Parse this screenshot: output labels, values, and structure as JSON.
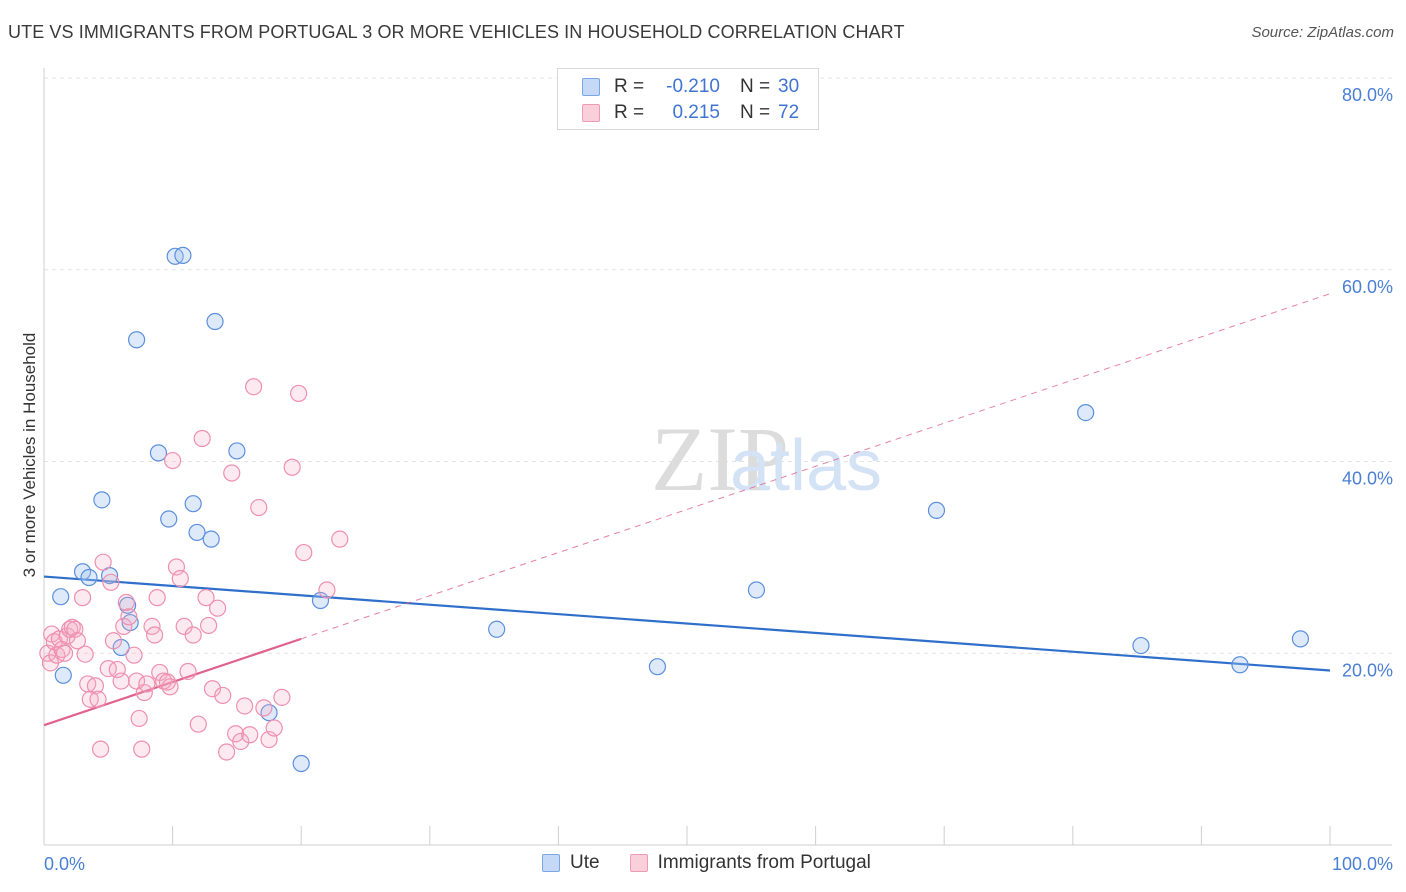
{
  "title": "UTE VS IMMIGRANTS FROM PORTUGAL 3 OR MORE VEHICLES IN HOUSEHOLD CORRELATION CHART",
  "source": "Source: ZipAtlas.com",
  "watermark": {
    "zip": "ZIP",
    "atlas": "atlas"
  },
  "legend": {
    "rows": [
      {
        "r_label": "R =",
        "r_value": "-0.210",
        "n_label": "N =",
        "n_value": "30"
      },
      {
        "r_label": "R =",
        "r_value": "0.215",
        "n_label": "N =",
        "n_value": "72"
      }
    ]
  },
  "colors": {
    "blue": "#5b8fdd",
    "blue_line": "#2f6fcc",
    "pink": "#ee8fae",
    "pink_line": "#e0628b",
    "tick": "#4a7fd4",
    "grid": "#e3e3e3"
  },
  "chart_data": {
    "type": "scatter",
    "title": "UTE VS IMMIGRANTS FROM PORTUGAL 3 OR MORE VEHICLES IN HOUSEHOLD CORRELATION CHART",
    "xlabel": "",
    "ylabel": "3 or more Vehicles in Household",
    "xlim": [
      0,
      100
    ],
    "ylim": [
      0,
      80
    ],
    "x_ticks": [
      "0.0%",
      "100.0%"
    ],
    "y_ticks": [
      {
        "value": 20,
        "label": "20.0%"
      },
      {
        "value": 40,
        "label": "40.0%"
      },
      {
        "value": 60,
        "label": "60.0%"
      },
      {
        "value": 80,
        "label": "80.0%"
      }
    ],
    "series": [
      {
        "name": "Ute",
        "color": "#5b8fdd",
        "points": [
          [
            1.3,
            25.9
          ],
          [
            1.5,
            17.7
          ],
          [
            3.0,
            28.5
          ],
          [
            3.5,
            27.9
          ],
          [
            4.5,
            36.0
          ],
          [
            5.1,
            28.1
          ],
          [
            6.0,
            20.6
          ],
          [
            6.5,
            25.0
          ],
          [
            6.7,
            23.2
          ],
          [
            7.2,
            52.7
          ],
          [
            8.9,
            40.9
          ],
          [
            9.7,
            34.0
          ],
          [
            10.2,
            61.4
          ],
          [
            10.8,
            61.5
          ],
          [
            11.6,
            35.6
          ],
          [
            11.9,
            32.6
          ],
          [
            13.0,
            31.9
          ],
          [
            13.3,
            54.6
          ],
          [
            15.0,
            41.1
          ],
          [
            17.5,
            13.8
          ],
          [
            20.0,
            8.5
          ],
          [
            21.5,
            25.5
          ],
          [
            35.2,
            22.5
          ],
          [
            47.7,
            18.6
          ],
          [
            55.4,
            26.6
          ],
          [
            69.4,
            34.9
          ],
          [
            81.0,
            45.1
          ],
          [
            85.3,
            20.8
          ],
          [
            93.0,
            18.8
          ],
          [
            97.7,
            21.5
          ]
        ]
      },
      {
        "name": "Immigrants from Portugal",
        "color": "#ee8fae",
        "points": [
          [
            0.3,
            20.0
          ],
          [
            0.5,
            19.0
          ],
          [
            0.6,
            22.0
          ],
          [
            0.8,
            21.2
          ],
          [
            1.0,
            19.8
          ],
          [
            1.2,
            21.5
          ],
          [
            1.4,
            20.4
          ],
          [
            1.6,
            20.0
          ],
          [
            1.8,
            21.8
          ],
          [
            2.0,
            22.5
          ],
          [
            2.2,
            22.7
          ],
          [
            2.4,
            22.5
          ],
          [
            2.6,
            21.3
          ],
          [
            3.0,
            25.8
          ],
          [
            3.2,
            19.9
          ],
          [
            3.4,
            16.8
          ],
          [
            3.6,
            15.2
          ],
          [
            4.0,
            16.6
          ],
          [
            4.2,
            15.2
          ],
          [
            4.4,
            10.0
          ],
          [
            4.6,
            29.5
          ],
          [
            5.0,
            18.4
          ],
          [
            5.2,
            27.4
          ],
          [
            5.4,
            21.3
          ],
          [
            5.7,
            18.3
          ],
          [
            6.0,
            17.1
          ],
          [
            6.2,
            22.8
          ],
          [
            6.4,
            25.3
          ],
          [
            6.6,
            23.8
          ],
          [
            7.0,
            19.8
          ],
          [
            7.2,
            17.1
          ],
          [
            7.4,
            13.2
          ],
          [
            7.6,
            10.0
          ],
          [
            7.8,
            15.9
          ],
          [
            8.0,
            16.8
          ],
          [
            8.4,
            22.8
          ],
          [
            8.6,
            21.9
          ],
          [
            8.8,
            25.8
          ],
          [
            9.0,
            18.0
          ],
          [
            9.3,
            17.1
          ],
          [
            9.6,
            17.0
          ],
          [
            9.8,
            16.5
          ],
          [
            10.0,
            40.1
          ],
          [
            10.3,
            29.0
          ],
          [
            10.6,
            27.8
          ],
          [
            10.9,
            22.8
          ],
          [
            11.2,
            18.1
          ],
          [
            11.6,
            21.9
          ],
          [
            12.0,
            12.6
          ],
          [
            12.3,
            42.4
          ],
          [
            12.6,
            25.8
          ],
          [
            12.8,
            22.9
          ],
          [
            13.1,
            16.3
          ],
          [
            13.5,
            24.7
          ],
          [
            13.9,
            15.6
          ],
          [
            14.2,
            9.7
          ],
          [
            14.6,
            38.8
          ],
          [
            14.9,
            11.6
          ],
          [
            15.3,
            10.8
          ],
          [
            15.6,
            14.5
          ],
          [
            16.0,
            11.5
          ],
          [
            16.3,
            47.8
          ],
          [
            16.7,
            35.2
          ],
          [
            17.1,
            14.3
          ],
          [
            17.5,
            11.0
          ],
          [
            17.9,
            12.2
          ],
          [
            18.5,
            15.4
          ],
          [
            19.3,
            39.4
          ],
          [
            19.8,
            47.1
          ],
          [
            20.2,
            30.5
          ],
          [
            22.0,
            26.6
          ],
          [
            23.0,
            31.9
          ]
        ]
      }
    ],
    "trend_lines": [
      {
        "series": "Ute",
        "x": [
          0,
          100
        ],
        "y": [
          28.0,
          18.2
        ],
        "style": "solid"
      },
      {
        "series": "Immigrants from Portugal",
        "x": [
          0,
          20
        ],
        "y": [
          12.5,
          21.5
        ],
        "style": "solid"
      },
      {
        "series": "Immigrants from Portugal",
        "x": [
          20,
          100
        ],
        "y": [
          21.5,
          57.5
        ],
        "style": "dashed"
      }
    ],
    "legend": [
      "Ute",
      "Immigrants from Portugal"
    ],
    "grid": true
  }
}
